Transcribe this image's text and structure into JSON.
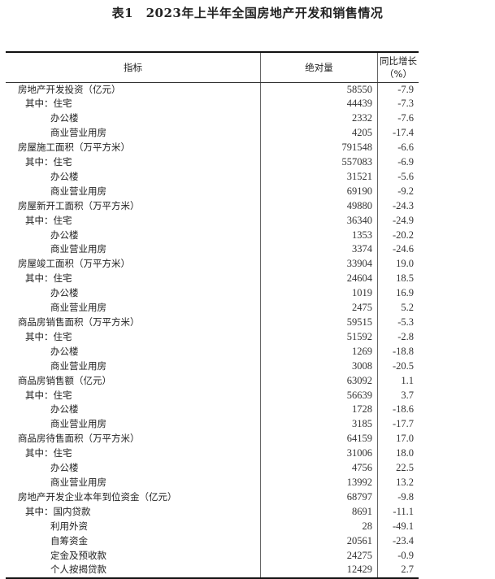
{
  "title": "表1　2023年上半年全国房地产开发和销售情况",
  "headers": [
    "指标",
    "绝对量",
    "同比增长（%）"
  ],
  "rows": [
    {
      "label": "房地产开发投资（亿元）",
      "level": 0,
      "value": "58550",
      "growth": "-7.9"
    },
    {
      "label": "其中：住宅",
      "level": 1,
      "value": "44439",
      "growth": "-7.3"
    },
    {
      "label": "办公楼",
      "level": 2,
      "value": "2332",
      "growth": "-7.6"
    },
    {
      "label": "商业营业用房",
      "level": 2,
      "value": "4205",
      "growth": "-17.4"
    },
    {
      "label": "房屋施工面积（万平方米）",
      "level": 0,
      "value": "791548",
      "growth": "-6.6"
    },
    {
      "label": "其中：住宅",
      "level": 1,
      "value": "557083",
      "growth": "-6.9"
    },
    {
      "label": "办公楼",
      "level": 2,
      "value": "31521",
      "growth": "-5.6"
    },
    {
      "label": "商业营业用房",
      "level": 2,
      "value": "69190",
      "growth": "-9.2"
    },
    {
      "label": "房屋新开工面积（万平方米）",
      "level": 0,
      "value": "49880",
      "growth": "-24.3"
    },
    {
      "label": "其中：住宅",
      "level": 1,
      "value": "36340",
      "growth": "-24.9"
    },
    {
      "label": "办公楼",
      "level": 2,
      "value": "1353",
      "growth": "-20.2"
    },
    {
      "label": "商业营业用房",
      "level": 2,
      "value": "3374",
      "growth": "-24.6"
    },
    {
      "label": "房屋竣工面积（万平方米）",
      "level": 0,
      "value": "33904",
      "growth": "19.0"
    },
    {
      "label": "其中：住宅",
      "level": 1,
      "value": "24604",
      "growth": "18.5"
    },
    {
      "label": "办公楼",
      "level": 2,
      "value": "1019",
      "growth": "16.9"
    },
    {
      "label": "商业营业用房",
      "level": 2,
      "value": "2475",
      "growth": "5.2"
    },
    {
      "label": "商品房销售面积（万平方米）",
      "level": 0,
      "value": "59515",
      "growth": "-5.3"
    },
    {
      "label": "其中：住宅",
      "level": 1,
      "value": "51592",
      "growth": "-2.8"
    },
    {
      "label": "办公楼",
      "level": 2,
      "value": "1269",
      "growth": "-18.8"
    },
    {
      "label": "商业营业用房",
      "level": 2,
      "value": "3008",
      "growth": "-20.5"
    },
    {
      "label": "商品房销售额（亿元）",
      "level": 0,
      "value": "63092",
      "growth": "1.1"
    },
    {
      "label": "其中：住宅",
      "level": 1,
      "value": "56639",
      "growth": "3.7"
    },
    {
      "label": "办公楼",
      "level": 2,
      "value": "1728",
      "growth": "-18.6"
    },
    {
      "label": "商业营业用房",
      "level": 2,
      "value": "3185",
      "growth": "-17.7"
    },
    {
      "label": "商品房待售面积（万平方米）",
      "level": 0,
      "value": "64159",
      "growth": "17.0"
    },
    {
      "label": "其中：住宅",
      "level": 1,
      "value": "31006",
      "growth": "18.0"
    },
    {
      "label": "办公楼",
      "level": 2,
      "value": "4756",
      "growth": "22.5"
    },
    {
      "label": "商业营业用房",
      "level": 2,
      "value": "13992",
      "growth": "13.2"
    },
    {
      "label": "房地产开发企业本年到位资金（亿元）",
      "level": 0,
      "value": "68797",
      "growth": "-9.8"
    },
    {
      "label": "其中：国内贷款",
      "level": 1,
      "value": "8691",
      "growth": "-11.1"
    },
    {
      "label": "利用外资",
      "level": 2,
      "value": "28",
      "growth": "-49.1"
    },
    {
      "label": "自筹资金",
      "level": 2,
      "value": "20561",
      "growth": "-23.4"
    },
    {
      "label": "定金及预收款",
      "level": 2,
      "value": "24275",
      "growth": "-0.9"
    },
    {
      "label": "个人按揭贷款",
      "level": 2,
      "value": "12429",
      "growth": "2.7"
    }
  ]
}
